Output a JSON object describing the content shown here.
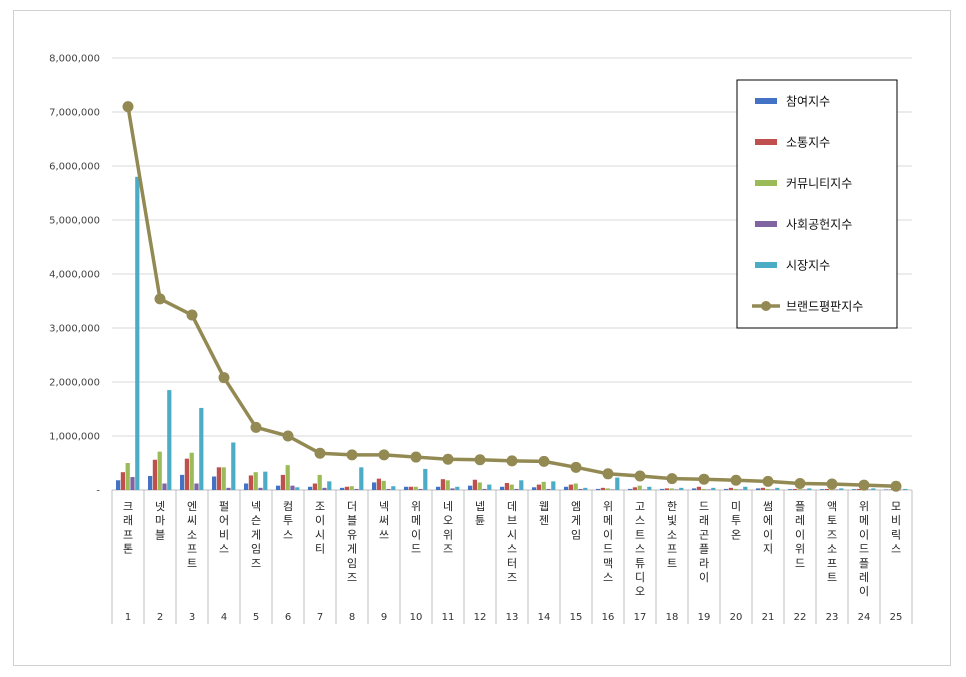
{
  "chart_data": {
    "type": "bar",
    "y_ticks": [
      "-",
      "1,000,000",
      "2,000,000",
      "3,000,000",
      "4,000,000",
      "5,000,000",
      "6,000,000",
      "7,000,000",
      "8,000,000"
    ],
    "ylim": [
      0,
      8000000
    ],
    "grid": true,
    "legend_position": "top-right",
    "categories": [
      "크래프톤",
      "넷마블",
      "엔씨소프트",
      "펄어비스",
      "넥슨게임즈",
      "컴투스",
      "조이시티",
      "더블유게임즈",
      "넥써쓰",
      "위메이드",
      "네오위즈",
      "넵튠",
      "데브시스터즈",
      "웹젠",
      "엠게임",
      "위메이드맥스",
      "고스트스튜디오",
      "한빛소프트",
      "드래곤플라이",
      "미투온",
      "썸에이지",
      "플레이위드",
      "액토즈소프트",
      "위메이드플레이",
      "모비릭스"
    ],
    "ranks": [
      "1",
      "2",
      "3",
      "4",
      "5",
      "6",
      "7",
      "8",
      "9",
      "10",
      "11",
      "12",
      "13",
      "14",
      "15",
      "16",
      "17",
      "18",
      "19",
      "20",
      "21",
      "22",
      "23",
      "24",
      "25"
    ],
    "series": [
      {
        "name": "참여지수",
        "type": "bar",
        "color": "#4472C4",
        "values": [
          180000,
          260000,
          280000,
          250000,
          120000,
          80000,
          60000,
          40000,
          140000,
          60000,
          60000,
          80000,
          60000,
          50000,
          60000,
          20000,
          20000,
          20000,
          30000,
          20000,
          30000,
          15000,
          15000,
          15000,
          10000
        ]
      },
      {
        "name": "소통지수",
        "type": "bar",
        "color": "#C0504D",
        "values": [
          330000,
          560000,
          580000,
          420000,
          270000,
          280000,
          120000,
          60000,
          210000,
          60000,
          200000,
          190000,
          130000,
          100000,
          100000,
          40000,
          50000,
          30000,
          60000,
          40000,
          40000,
          20000,
          20000,
          20000,
          10000
        ]
      },
      {
        "name": "커뮤니티지수",
        "type": "bar",
        "color": "#9BBB59",
        "values": [
          500000,
          710000,
          690000,
          420000,
          330000,
          460000,
          280000,
          70000,
          170000,
          60000,
          180000,
          140000,
          100000,
          150000,
          120000,
          30000,
          80000,
          30000,
          20000,
          20000,
          20000,
          15000,
          15000,
          15000,
          10000
        ]
      },
      {
        "name": "사회공헌지수",
        "type": "bar",
        "color": "#8064A2",
        "values": [
          240000,
          120000,
          120000,
          40000,
          40000,
          80000,
          40000,
          20000,
          20000,
          20000,
          30000,
          20000,
          20000,
          20000,
          20000,
          10000,
          10000,
          10000,
          10000,
          10000,
          10000,
          10000,
          10000,
          10000,
          5000
        ]
      },
      {
        "name": "시장지수",
        "type": "bar",
        "color": "#4BACC6",
        "values": [
          5800000,
          1850000,
          1520000,
          880000,
          340000,
          50000,
          160000,
          420000,
          70000,
          390000,
          60000,
          100000,
          180000,
          160000,
          40000,
          230000,
          60000,
          40000,
          40000,
          60000,
          40000,
          30000,
          30000,
          30000,
          20000
        ]
      },
      {
        "name": "브랜드평판지수",
        "type": "line",
        "color": "#938953",
        "values": [
          7100000,
          3540000,
          3240000,
          2080000,
          1160000,
          1000000,
          680000,
          650000,
          650000,
          610000,
          570000,
          560000,
          540000,
          530000,
          420000,
          300000,
          260000,
          210000,
          200000,
          180000,
          160000,
          120000,
          110000,
          90000,
          70000
        ]
      }
    ]
  }
}
